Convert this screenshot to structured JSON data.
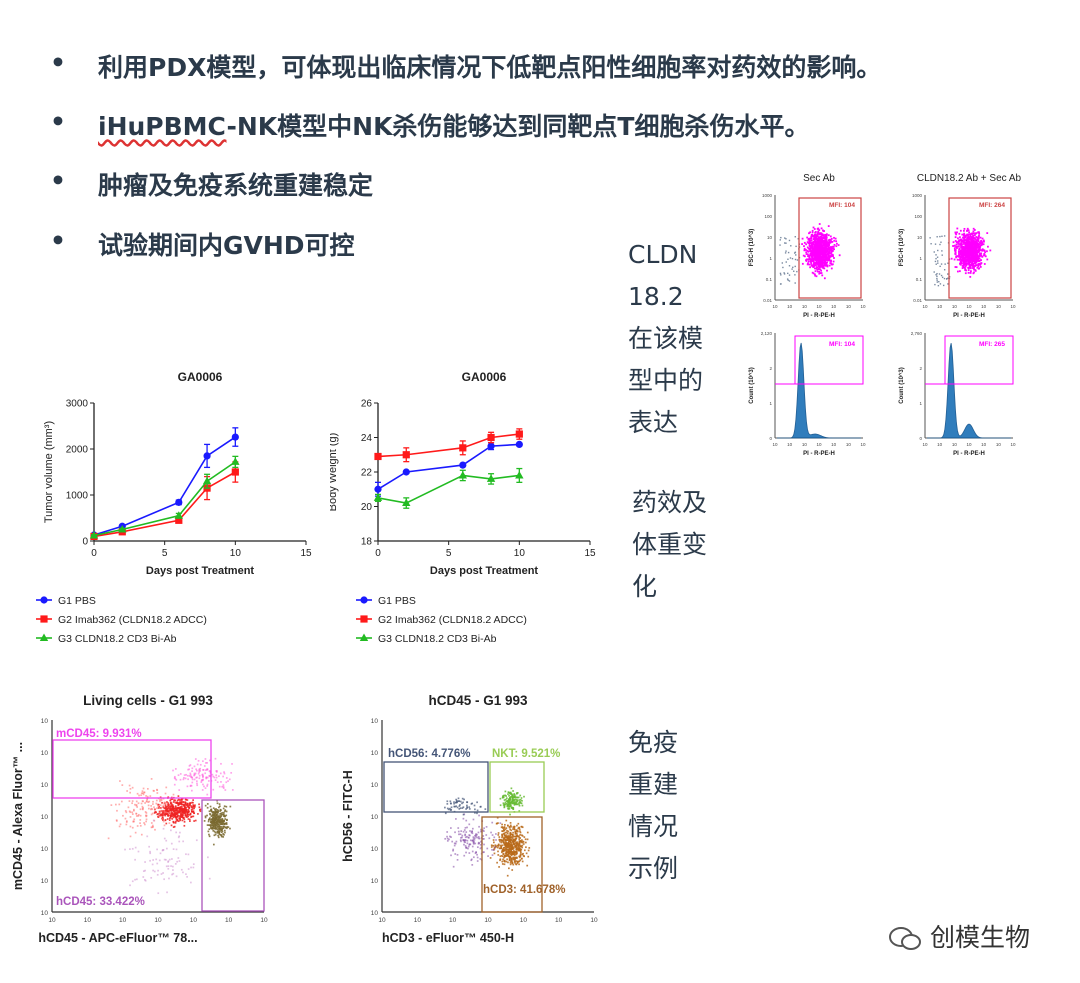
{
  "bullets": [
    {
      "text": "利用PDX模型，可体现出临床情况下低靶点阳性细胞率对药效的影响。"
    },
    {
      "text_a": "iHuPBMC",
      "text_b": "-NK模型中NK杀伤能够达到同靶点T细胞杀伤水平。"
    },
    {
      "text": "肿瘤及免疫系统重建稳定"
    },
    {
      "text": "试验期间内GVHD可控"
    }
  ],
  "bullet_symbol": "•",
  "side_labels": {
    "cldn": "CLDN\n18.2\n在该模\n型中的\n表达",
    "efficacy": "药效及\n体重变\n化",
    "immune": "免疫\n重建\n情况\n示例"
  },
  "watermark": "创模生物",
  "colors": {
    "g1": "#1a1aff",
    "g2": "#ff1a1a",
    "g3": "#22bb22",
    "magenta": "#ff00ff",
    "flow_box": "#cc4444",
    "histo": "#1a6fb5"
  },
  "chart_data": [
    {
      "type": "line",
      "title": "GA0006",
      "xlabel": "Days post Treatment",
      "ylabel": "Tumor volume (mm³)",
      "xlim": [
        0,
        15
      ],
      "ylim": [
        0,
        3000
      ],
      "xticks": [
        0,
        5,
        10,
        15
      ],
      "yticks": [
        0,
        1000,
        2000,
        3000
      ],
      "series": [
        {
          "name": "G1 PBS",
          "x": [
            0,
            2,
            6,
            8,
            10
          ],
          "y": [
            130,
            320,
            840,
            1850,
            2260
          ],
          "err": [
            20,
            30,
            50,
            250,
            200
          ]
        },
        {
          "name": "G2 Imab362 (CLDN18.2 ADCC)",
          "x": [
            0,
            2,
            6,
            8,
            10
          ],
          "y": [
            100,
            200,
            450,
            1150,
            1500
          ],
          "err": [
            15,
            25,
            50,
            250,
            220
          ]
        },
        {
          "name": "G3 CLDN18.2 CD3 Bi-Ab",
          "x": [
            0,
            2,
            6,
            8,
            10
          ],
          "y": [
            120,
            250,
            550,
            1300,
            1720
          ],
          "err": [
            15,
            25,
            50,
            150,
            120
          ]
        }
      ]
    },
    {
      "type": "line",
      "title": "GA0006",
      "xlabel": "Days post Treatment",
      "ylabel": "Body Weight (g)",
      "xlim": [
        0,
        15
      ],
      "ylim": [
        18,
        26
      ],
      "xticks": [
        0,
        5,
        10,
        15
      ],
      "yticks": [
        18,
        20,
        22,
        24,
        26
      ],
      "series": [
        {
          "name": "G1 PBS",
          "x": [
            0,
            2,
            6,
            8,
            10
          ],
          "y": [
            21.0,
            22.0,
            22.4,
            23.5,
            23.6
          ],
          "err": [
            0.4,
            0,
            0,
            0.2,
            0
          ]
        },
        {
          "name": "G2 Imab362 (CLDN18.2 ADCC)",
          "x": [
            0,
            2,
            6,
            8,
            10
          ],
          "y": [
            22.9,
            23.0,
            23.4,
            24.0,
            24.2
          ],
          "err": [
            0,
            0.4,
            0.4,
            0.3,
            0.3
          ]
        },
        {
          "name": "G3 CLDN18.2 CD3 Bi-Ab",
          "x": [
            0,
            2,
            6,
            8,
            10
          ],
          "y": [
            20.5,
            20.2,
            21.8,
            21.6,
            21.8
          ],
          "err": [
            0.2,
            0.3,
            0.3,
            0.3,
            0.4
          ]
        }
      ]
    },
    {
      "type": "scatter",
      "title": "Sec Ab",
      "xlabel": "PI - R-PE-H",
      "ylabel": "FSC-H (10^3)",
      "gate_label": "MFI: 104",
      "yticks": [
        "1000",
        "100",
        "10",
        "1",
        "0.1",
        "0.01"
      ]
    },
    {
      "type": "scatter",
      "title": "CLDN18.2 Ab + Sec Ab",
      "xlabel": "PI - R-PE-H",
      "ylabel": "FSC-H (10^3)",
      "gate_label": "MFI: 264",
      "yticks": [
        "1000",
        "100",
        "10",
        "1",
        "0.1",
        "0.01"
      ]
    },
    {
      "type": "area",
      "title": "",
      "xlabel": "PI - R-PE-H",
      "ylabel": "Count (10^3)",
      "gate_label": "MFI: 104",
      "yticks": [
        "2,120",
        "2",
        "1",
        "0"
      ]
    },
    {
      "type": "area",
      "title": "",
      "xlabel": "PI - R-PE-H",
      "ylabel": "Count (10^3)",
      "gate_label": "MFI: 265",
      "yticks": [
        "2,760",
        "2",
        "1",
        "0"
      ]
    },
    {
      "type": "scatter",
      "title": "Living cells - G1 993",
      "xlabel": "hCD45 - APC-eFluor™ 78...",
      "ylabel": "mCD45 - Alexa Fluor™ ...",
      "gates": [
        {
          "label": "mCD45: 9.931%"
        },
        {
          "label": "hCD45: 33.422%"
        }
      ]
    },
    {
      "type": "scatter",
      "title": "hCD45 - G1 993",
      "xlabel": "hCD3 - eFluor™ 450-H",
      "ylabel": "hCD56 - FITC-H",
      "gates": [
        {
          "label": "hCD56: 4.776%"
        },
        {
          "label": "NKT: 9.521%"
        },
        {
          "label": "hCD3: 41.678%"
        }
      ]
    }
  ]
}
